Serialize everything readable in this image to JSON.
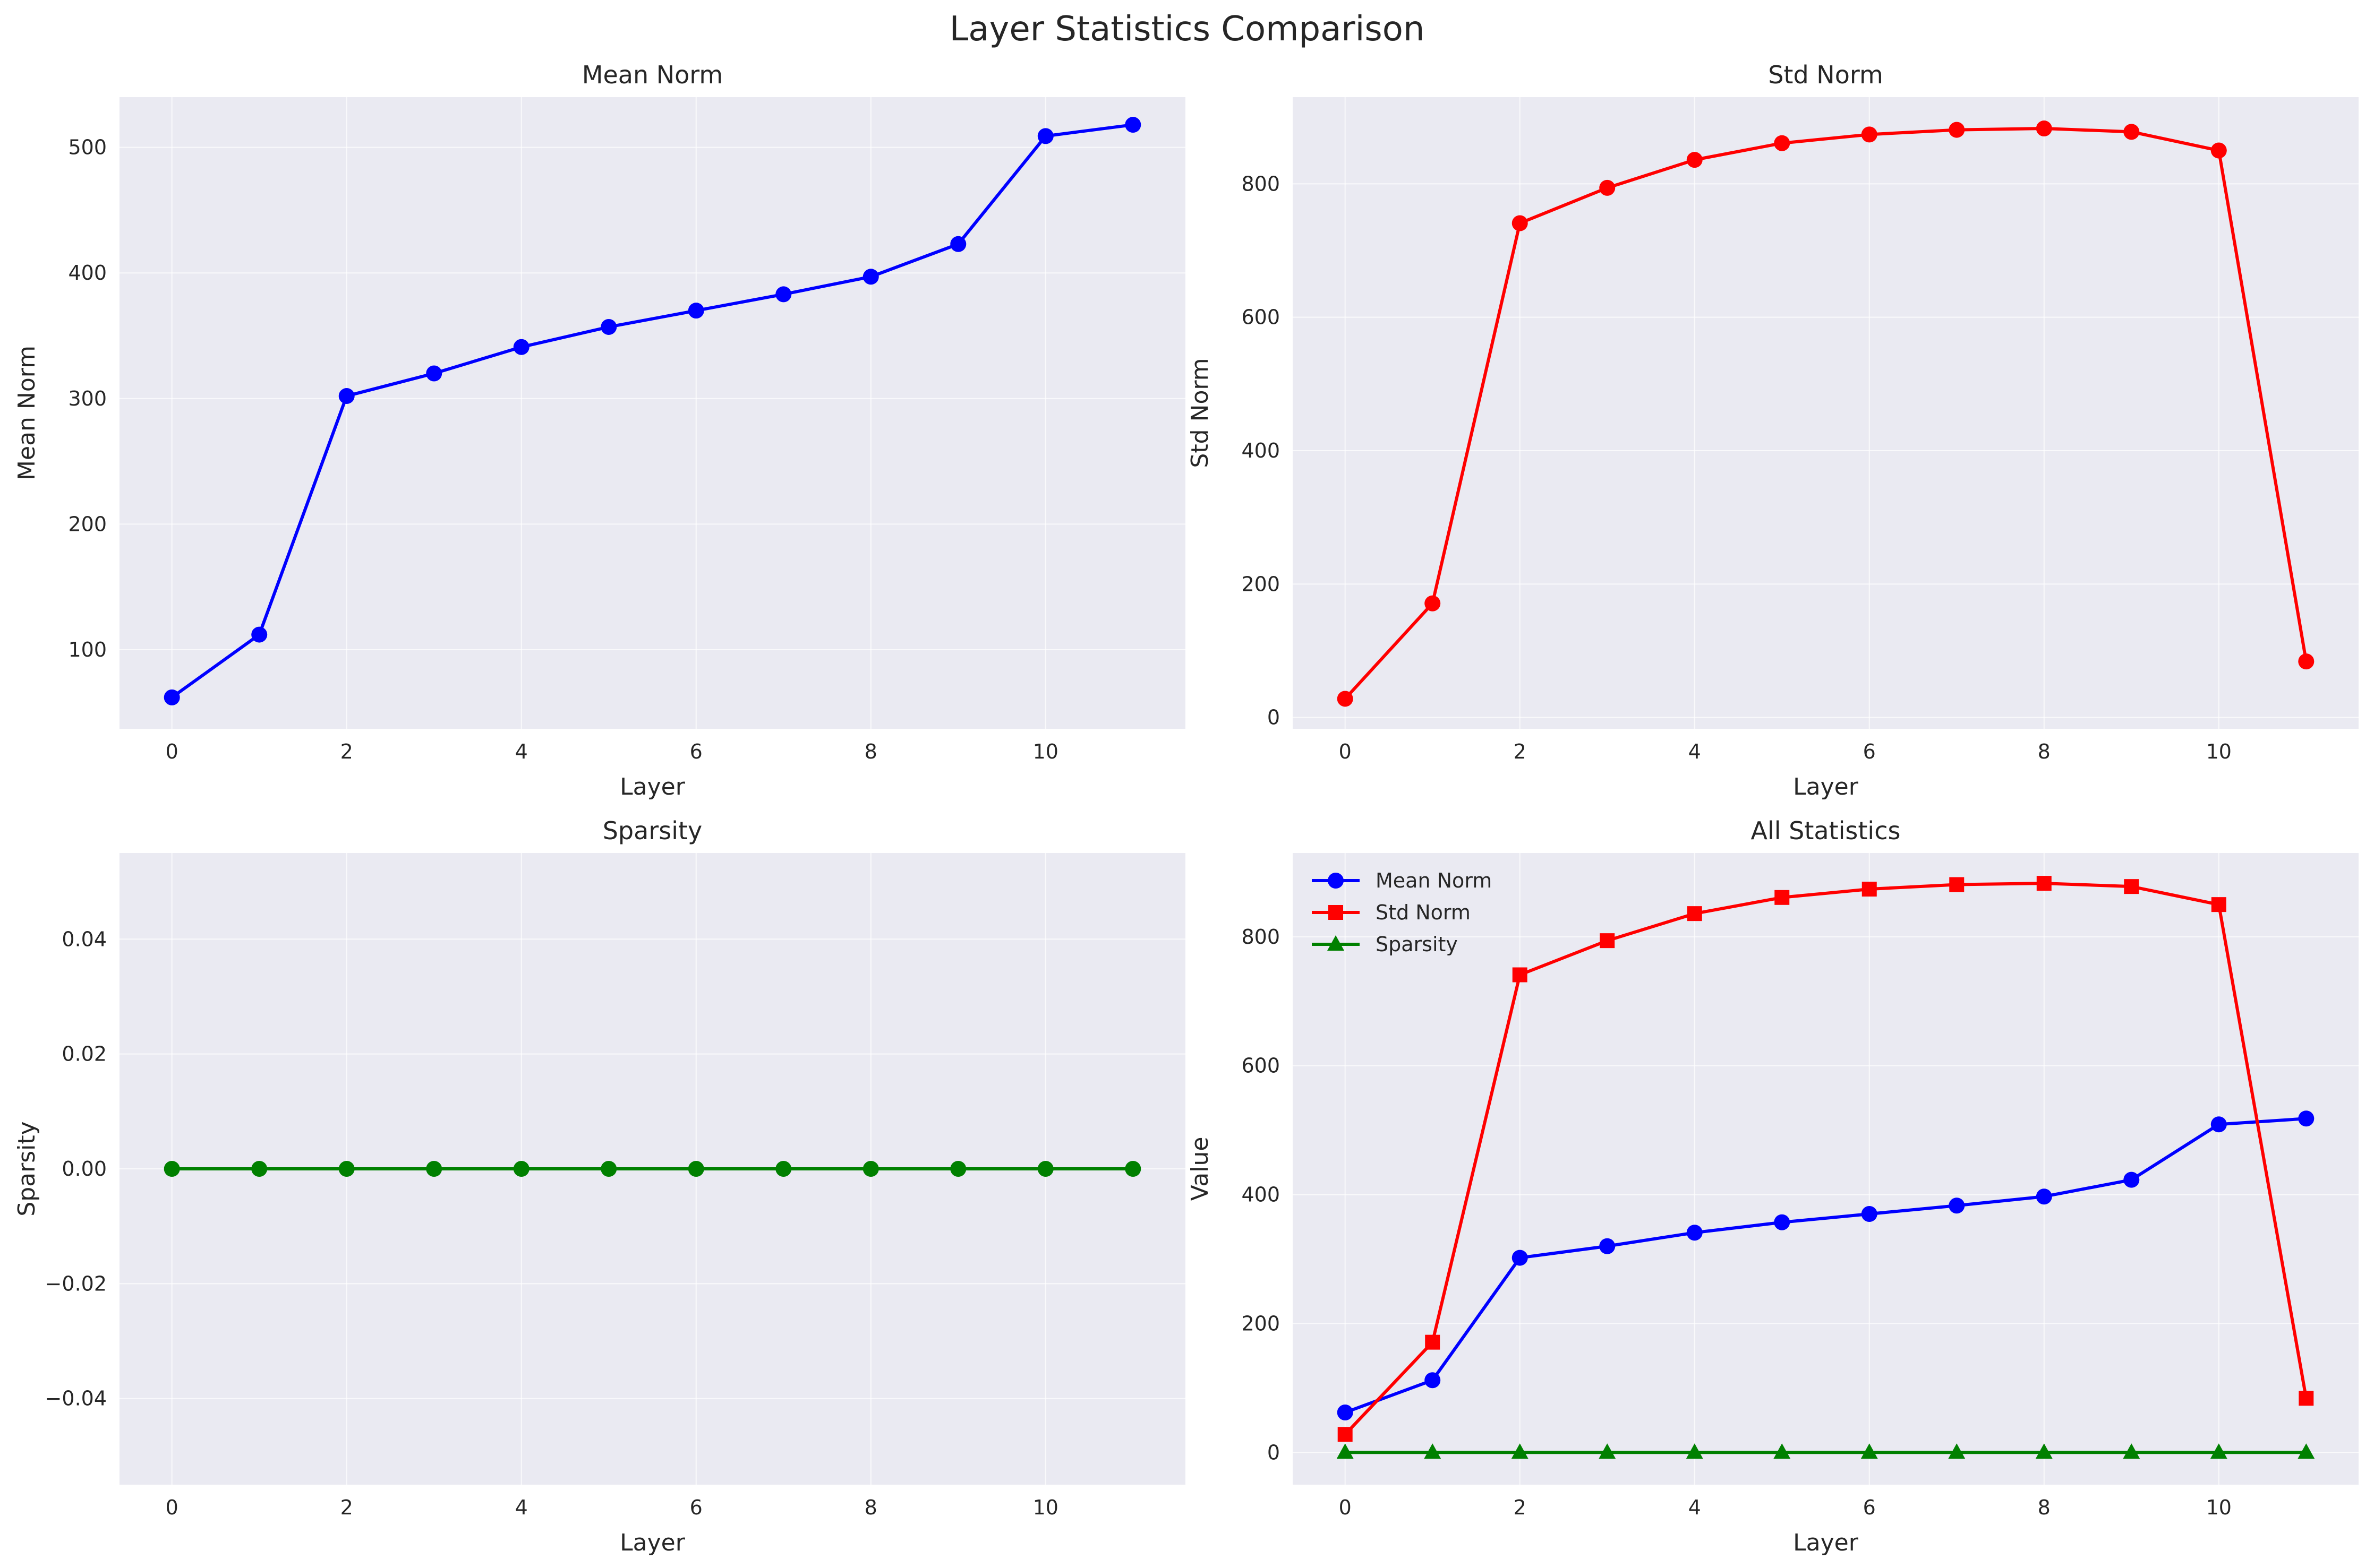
{
  "figure": {
    "title": "Layer Statistics Comparison"
  },
  "chart_data": [
    {
      "type": "line",
      "title": "Mean Norm",
      "xlabel": "Layer",
      "ylabel": "Mean Norm",
      "x": [
        0,
        1,
        2,
        3,
        4,
        5,
        6,
        7,
        8,
        9,
        10,
        11
      ],
      "xticks": [
        0,
        2,
        4,
        6,
        8,
        10
      ],
      "yticks": [
        100,
        200,
        300,
        400,
        500
      ],
      "xlim": [
        -0.6,
        11.6
      ],
      "ylim": [
        37,
        540
      ],
      "grid": true,
      "series": [
        {
          "values": [
            62,
            112,
            302,
            320,
            341,
            357,
            370,
            383,
            397,
            423,
            509,
            518
          ],
          "color": "#0000ff",
          "marker": "circle"
        }
      ]
    },
    {
      "type": "line",
      "title": "Std Norm",
      "xlabel": "Layer",
      "ylabel": "Std Norm",
      "x": [
        0,
        1,
        2,
        3,
        4,
        5,
        6,
        7,
        8,
        9,
        10,
        11
      ],
      "xticks": [
        0,
        2,
        4,
        6,
        8,
        10
      ],
      "yticks": [
        0,
        200,
        400,
        600,
        800
      ],
      "xlim": [
        -0.6,
        11.6
      ],
      "ylim": [
        -17,
        930
      ],
      "grid": true,
      "series": [
        {
          "values": [
            28,
            171,
            741,
            794,
            836,
            861,
            874,
            881,
            883,
            878,
            850,
            84
          ],
          "color": "#ff0000",
          "marker": "circle"
        }
      ]
    },
    {
      "type": "line",
      "title": "Sparsity",
      "xlabel": "Layer",
      "ylabel": "Sparsity",
      "x": [
        0,
        1,
        2,
        3,
        4,
        5,
        6,
        7,
        8,
        9,
        10,
        11
      ],
      "xticks": [
        0,
        2,
        4,
        6,
        8,
        10
      ],
      "yticks": [
        -0.04,
        -0.02,
        0.0,
        0.02,
        0.04
      ],
      "ytick_labels": [
        "−0.04",
        "−0.02",
        "0.00",
        "0.02",
        "0.04"
      ],
      "xlim": [
        -0.6,
        11.6
      ],
      "ylim": [
        -0.055,
        0.055
      ],
      "grid": true,
      "series": [
        {
          "values": [
            0,
            0,
            0,
            0,
            0,
            0,
            0,
            0,
            0,
            0,
            0,
            0
          ],
          "color": "#008000",
          "marker": "circle"
        }
      ]
    },
    {
      "type": "line",
      "title": "All Statistics",
      "xlabel": "Layer",
      "ylabel": "Value",
      "x": [
        0,
        1,
        2,
        3,
        4,
        5,
        6,
        7,
        8,
        9,
        10,
        11
      ],
      "xticks": [
        0,
        2,
        4,
        6,
        8,
        10
      ],
      "yticks": [
        0,
        200,
        400,
        600,
        800
      ],
      "xlim": [
        -0.6,
        11.6
      ],
      "ylim": [
        -50,
        930
      ],
      "grid": true,
      "legend": "top-left",
      "series": [
        {
          "name": "Mean Norm",
          "values": [
            62,
            112,
            302,
            320,
            341,
            357,
            370,
            383,
            397,
            423,
            509,
            518
          ],
          "color": "#0000ff",
          "marker": "circle"
        },
        {
          "name": "Std Norm",
          "values": [
            28,
            171,
            741,
            794,
            836,
            861,
            874,
            881,
            883,
            878,
            850,
            84
          ],
          "color": "#ff0000",
          "marker": "square"
        },
        {
          "name": "Sparsity",
          "values": [
            0,
            0,
            0,
            0,
            0,
            0,
            0,
            0,
            0,
            0,
            0,
            0
          ],
          "color": "#008000",
          "marker": "triangle"
        }
      ]
    }
  ]
}
